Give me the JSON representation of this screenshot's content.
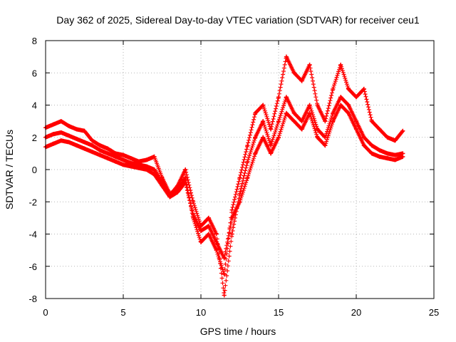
{
  "chart_data": {
    "type": "scatter",
    "title": "Day 362 of 2025, Sidereal Day-to-day VTEC variation (SDTVAR) for receiver ceu1",
    "xlabel": "GPS time / hours",
    "ylabel": "SDTVAR / TECUs",
    "xlim": [
      0,
      25
    ],
    "ylim": [
      -8,
      8
    ],
    "x_ticks": [
      "0",
      "5",
      "10",
      "15",
      "20",
      "25"
    ],
    "y_ticks": [
      "-8",
      "-6",
      "-4",
      "-2",
      "0",
      "2",
      "4",
      "6",
      "8"
    ],
    "x_tick_values": [
      0,
      5,
      10,
      15,
      20,
      25
    ],
    "y_tick_values": [
      -8,
      -6,
      -4,
      -2,
      0,
      2,
      4,
      6,
      8
    ],
    "grid": true,
    "marker": "plus",
    "series_color": "#ff0000",
    "series": [
      {
        "x": [
          0,
          0.5,
          1,
          1.5,
          2,
          2.5,
          3,
          3.5,
          4,
          4.5,
          5,
          5.5,
          6,
          6.5,
          7,
          7.5,
          8,
          8.5,
          9,
          9.5,
          10,
          10.5,
          11,
          11.5,
          12,
          12.5,
          13,
          13.5,
          14,
          14.5,
          15,
          15.5,
          16,
          16.5,
          17,
          17.5,
          18,
          18.5,
          19,
          19.5,
          20,
          20.5,
          21,
          21.5,
          22,
          22.5,
          23
        ],
        "y": [
          2.6,
          2.8,
          3.0,
          2.7,
          2.5,
          2.4,
          1.8,
          1.5,
          1.3,
          1.0,
          0.9,
          0.7,
          0.5,
          0.6,
          0.8,
          -0.5,
          -1.5,
          -1.2,
          -0.5,
          -3.0,
          -4.5,
          -4.0,
          -5.0,
          -6.5,
          -2.5,
          -0.5,
          1.5,
          3.5,
          4.0,
          2.5,
          4.5,
          7.0,
          6.0,
          5.5,
          6.5,
          4.0,
          3.0,
          5.0,
          6.5,
          5.0,
          4.5,
          5.0,
          3.0,
          2.5,
          2.0,
          1.8,
          2.4
        ]
      },
      {
        "x": [
          0,
          0.5,
          1,
          1.5,
          2,
          2.5,
          3,
          3.5,
          4,
          4.5,
          5,
          5.5,
          6,
          6.5,
          7,
          7.5,
          8,
          8.5,
          9,
          9.5,
          10,
          10.5,
          11,
          11.5,
          12,
          12.5,
          13,
          13.5,
          14,
          14.5,
          15,
          15.5,
          16,
          16.5,
          17,
          17.5,
          18,
          18.5,
          19,
          19.5,
          20,
          20.5,
          21,
          21.5,
          22,
          22.5,
          23
        ],
        "y": [
          2.0,
          2.2,
          2.3,
          2.1,
          1.9,
          1.7,
          1.5,
          1.2,
          1.0,
          0.8,
          0.6,
          0.4,
          0.3,
          0.2,
          0.0,
          -0.8,
          -1.6,
          -1.0,
          0.0,
          -2.0,
          -3.5,
          -3.0,
          -4.0,
          -7.8,
          -4.0,
          -1.5,
          0.5,
          2.0,
          3.0,
          1.5,
          3.0,
          4.5,
          3.5,
          3.0,
          4.0,
          2.5,
          2.0,
          3.5,
          4.5,
          4.0,
          3.0,
          2.0,
          1.5,
          1.2,
          1.0,
          0.9,
          1.0
        ]
      },
      {
        "x": [
          0,
          0.5,
          1,
          1.5,
          2,
          2.5,
          3,
          3.5,
          4,
          4.5,
          5,
          5.5,
          6,
          6.5,
          7,
          7.5,
          8,
          8.5,
          9,
          9.5,
          10,
          10.5,
          11,
          11.5,
          12,
          12.5,
          13,
          13.5,
          14,
          14.5,
          15,
          15.5,
          16,
          16.5,
          17,
          17.5,
          18,
          18.5,
          19,
          19.5,
          20,
          20.5,
          21,
          21.5,
          22,
          22.5,
          23
        ],
        "y": [
          1.4,
          1.6,
          1.8,
          1.7,
          1.5,
          1.3,
          1.1,
          0.9,
          0.7,
          0.5,
          0.3,
          0.2,
          0.1,
          0.0,
          -0.3,
          -1.0,
          -1.7,
          -1.4,
          -0.8,
          -2.8,
          -3.8,
          -3.5,
          -4.5,
          -5.5,
          -3.0,
          -2.0,
          -0.5,
          1.0,
          2.0,
          1.0,
          2.0,
          3.5,
          3.0,
          2.5,
          3.5,
          2.0,
          1.5,
          3.0,
          4.0,
          3.5,
          2.5,
          1.5,
          1.0,
          0.8,
          0.7,
          0.6,
          0.8
        ]
      }
    ]
  }
}
